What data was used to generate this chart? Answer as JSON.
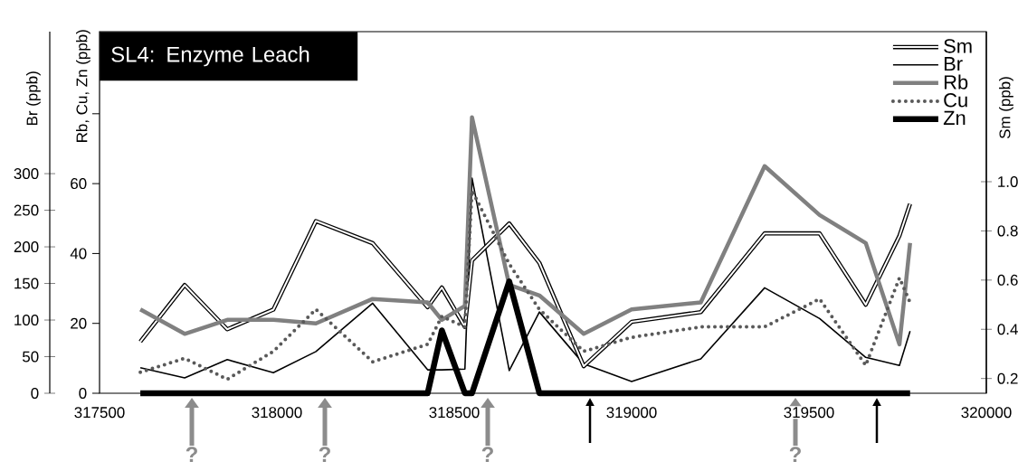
{
  "chart_data": {
    "type": "line",
    "title": "SL4:  Enzyme Leach",
    "ylabel": "Br (ppb)",
    "y2label": "Rb, Cu, Zn (ppb)",
    "y3label": "Sm (ppb)",
    "x": [
      317615,
      317740,
      317860,
      317990,
      318110,
      318270,
      318425,
      318465,
      318530,
      318550,
      318655,
      318740,
      318865,
      319000,
      319195,
      319375,
      319530,
      319660,
      319755,
      319785
    ],
    "series": [
      {
        "name": "Sm",
        "color": "#000000",
        "axis": "y3",
        "values": [
          0.35,
          0.58,
          0.4,
          0.48,
          0.84,
          0.75,
          0.49,
          0.57,
          0.41,
          0.68,
          0.83,
          0.67,
          0.25,
          0.43,
          0.47,
          0.79,
          0.79,
          0.5,
          0.78,
          0.91
        ]
      },
      {
        "name": "Br",
        "color": "#000000",
        "axis": "y",
        "values": [
          35,
          21,
          46,
          28,
          57,
          123,
          32,
          32,
          33,
          294,
          31,
          111,
          40,
          16,
          47,
          144,
          102,
          49,
          38,
          85
        ]
      },
      {
        "name": "Rb",
        "color": "#808080",
        "axis": "y2",
        "values": [
          24,
          17,
          21,
          21,
          20,
          27,
          26,
          21,
          25,
          79,
          31,
          28,
          17,
          24,
          26,
          65,
          51,
          43,
          14,
          43
        ]
      },
      {
        "name": "Cu",
        "color": "#595959",
        "axis": "y2",
        "line_style": "dotted",
        "values": [
          6,
          10,
          4,
          12,
          24,
          9,
          14,
          22,
          19,
          58,
          37,
          24,
          12,
          16,
          19,
          19,
          27,
          8,
          33,
          26
        ]
      },
      {
        "name": "Zn",
        "color": "#000000",
        "axis": "y2",
        "values": [
          0,
          0,
          0,
          0,
          0,
          0,
          0,
          18,
          0,
          0,
          32,
          0,
          0,
          0,
          0,
          0,
          0,
          0,
          0,
          0
        ]
      }
    ],
    "xlim": [
      317500,
      320000
    ],
    "xticks": [
      317500,
      318000,
      318500,
      319000,
      319500,
      320000
    ],
    "ylim": [
      0,
      494
    ],
    "yticks": [
      0,
      50,
      100,
      150,
      200,
      250,
      300
    ],
    "y2lim": [
      0,
      103.5
    ],
    "y2ticks": [
      0,
      20,
      40,
      60,
      {
        "value": 80,
        "label": null
      }
    ],
    "y3lim": [
      0.14,
      1.61
    ],
    "y3ticks": [
      0.2,
      0.4,
      0.6,
      0.8,
      {
        "value": 1.0,
        "label": "1.0"
      }
    ],
    "legend": "top right",
    "annotations": [
      "?",
      "?",
      "?",
      "?"
    ]
  }
}
